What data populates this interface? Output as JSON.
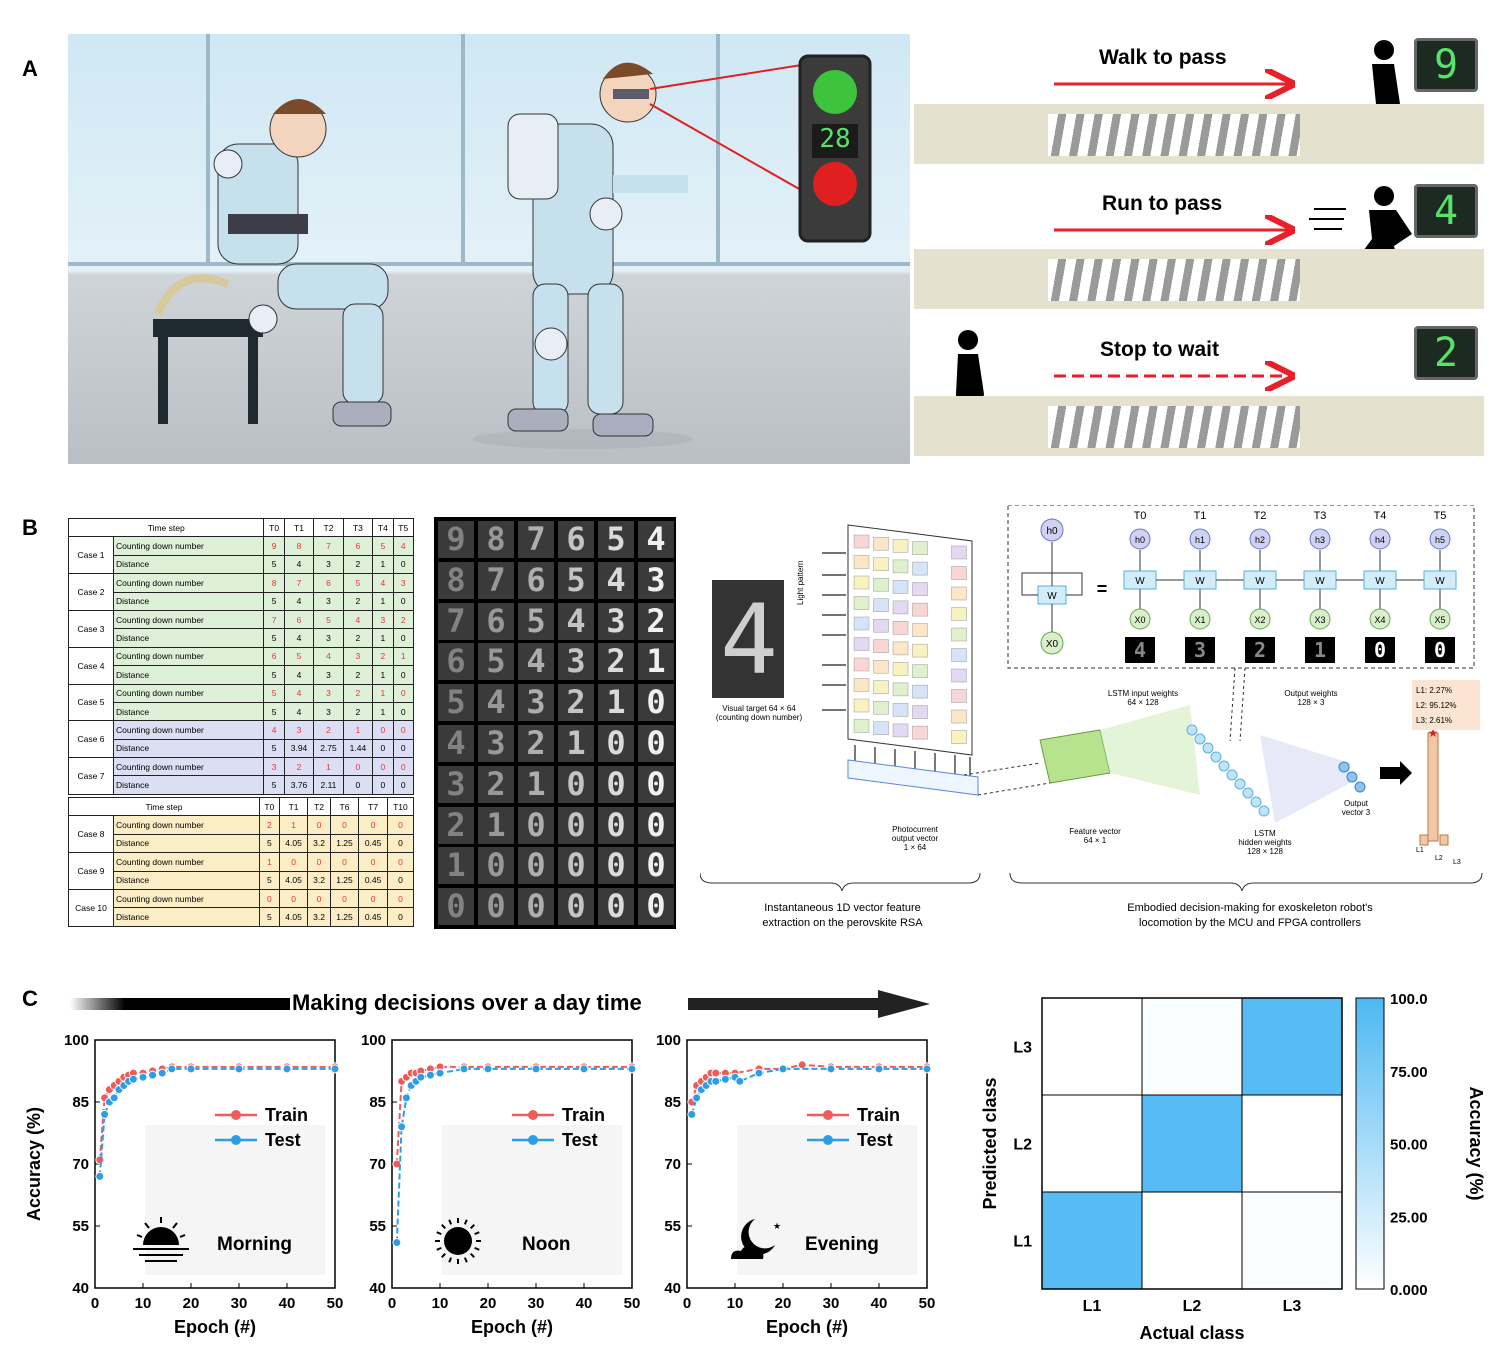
{
  "panels": {
    "a": "A",
    "b": "B",
    "c": "C"
  },
  "panel_a": {
    "traffic_light_count": "28",
    "scenarios": [
      {
        "title": "Walk to pass",
        "count": "9",
        "arrow": "solid"
      },
      {
        "title": "Run to pass",
        "count": "4",
        "arrow": "solid"
      },
      {
        "title": "Stop to wait",
        "count": "2",
        "arrow": "dashed"
      }
    ],
    "colors": {
      "arrow": "#e8202a",
      "digit": "#57e26a",
      "light_green": "#3ec43a",
      "light_red": "#e02020"
    }
  },
  "panel_b": {
    "table1": {
      "header": [
        "Time step",
        "T0",
        "T1",
        "T2",
        "T3",
        "T4",
        "T5"
      ],
      "cases": [
        {
          "name": "Case 1",
          "color": "g",
          "count": [
            "9",
            "8",
            "7",
            "6",
            "5",
            "4"
          ],
          "dist": [
            "5",
            "4",
            "3",
            "2",
            "1",
            "0"
          ]
        },
        {
          "name": "Case 2",
          "color": "g",
          "count": [
            "8",
            "7",
            "6",
            "5",
            "4",
            "3"
          ],
          "dist": [
            "5",
            "4",
            "3",
            "2",
            "1",
            "0"
          ]
        },
        {
          "name": "Case 3",
          "color": "g",
          "count": [
            "7",
            "6",
            "5",
            "4",
            "3",
            "2"
          ],
          "dist": [
            "5",
            "4",
            "3",
            "2",
            "1",
            "0"
          ]
        },
        {
          "name": "Case 4",
          "color": "g",
          "count": [
            "6",
            "5",
            "4",
            "3",
            "2",
            "1"
          ],
          "dist": [
            "5",
            "4",
            "3",
            "2",
            "1",
            "0"
          ]
        },
        {
          "name": "Case 5",
          "color": "g",
          "count": [
            "5",
            "4",
            "3",
            "2",
            "1",
            "0"
          ],
          "dist": [
            "5",
            "4",
            "3",
            "2",
            "1",
            "0"
          ]
        },
        {
          "name": "Case 6",
          "color": "b",
          "count": [
            "4",
            "3",
            "2",
            "1",
            "0",
            "0"
          ],
          "dist": [
            "5",
            "3.94",
            "2.75",
            "1.44",
            "0",
            "0"
          ]
        },
        {
          "name": "Case 7",
          "color": "b",
          "count": [
            "3",
            "2",
            "1",
            "0",
            "0",
            "0"
          ],
          "dist": [
            "5",
            "3.76",
            "2.11",
            "0",
            "0",
            "0"
          ]
        }
      ]
    },
    "table2": {
      "header": [
        "Time step",
        "T0",
        "T1",
        "T2",
        "T6",
        "T7",
        "T10"
      ],
      "cases": [
        {
          "name": "Case 8",
          "color": "y",
          "count": [
            "2",
            "1",
            "0",
            "0",
            "0",
            "0"
          ],
          "dist": [
            "5",
            "4.05",
            "3.2",
            "1.25",
            "0.45",
            "0"
          ]
        },
        {
          "name": "Case 9",
          "color": "y",
          "count": [
            "1",
            "0",
            "0",
            "0",
            "0",
            "0"
          ],
          "dist": [
            "5",
            "4.05",
            "3.2",
            "1.25",
            "0.45",
            "0"
          ]
        },
        {
          "name": "Case 10",
          "color": "y",
          "count": [
            "0",
            "0",
            "0",
            "0",
            "0",
            "0"
          ],
          "dist": [
            "5",
            "4.05",
            "3.2",
            "1.25",
            "0.45",
            "0"
          ]
        }
      ]
    },
    "row_labels": {
      "count": "Counting down number",
      "dist": "Distance"
    },
    "digit_grid": [
      [
        "9",
        "8",
        "7",
        "6",
        "5",
        "4"
      ],
      [
        "8",
        "7",
        "6",
        "5",
        "4",
        "3"
      ],
      [
        "7",
        "6",
        "5",
        "4",
        "3",
        "2"
      ],
      [
        "6",
        "5",
        "4",
        "3",
        "2",
        "1"
      ],
      [
        "5",
        "4",
        "3",
        "2",
        "1",
        "0"
      ],
      [
        "4",
        "3",
        "2",
        "1",
        "0",
        "0"
      ],
      [
        "3",
        "2",
        "1",
        "0",
        "0",
        "0"
      ],
      [
        "2",
        "1",
        "0",
        "0",
        "0",
        "0"
      ],
      [
        "1",
        "0",
        "0",
        "0",
        "0",
        "0"
      ],
      [
        "0",
        "0",
        "0",
        "0",
        "0",
        "0"
      ]
    ],
    "schematic": {
      "target_digit": "4",
      "visual_target": "Visual target 64 × 64",
      "visual_target_sub": "(counting down number)",
      "light_pattern": "Light pattern",
      "photocurrent": "Photocurrent",
      "photocurrent2": "output vector",
      "photocurrent3": "1 × 64",
      "lstm_input": "LSTM input weights",
      "lstm_input_dim": "64 × 128",
      "output_weights": "Output weights",
      "output_weights_dim": "128 × 3",
      "feature_vector": "Feature vector",
      "feature_vector_dim": "64 × 1",
      "lstm_hidden": "LSTM",
      "lstm_hidden2": "hidden weights",
      "lstm_hidden_dim": "128 × 128",
      "output_vector": "Output",
      "output_vector2": "vector 3",
      "probs": [
        "L1: 2.27%",
        "L2: 95.12%",
        "L3: 2.61%"
      ],
      "bar_labels": [
        "L1",
        "L2",
        "L3"
      ],
      "caption_left_1": "Instantaneous 1D vector feature",
      "caption_left_2": "extraction on the perovskite RSA",
      "caption_right_1": "Embodied decision-making for exoskeleton robot's",
      "caption_right_2": "locomotion by the MCU and FPGA controllers",
      "unrolled_T": [
        "T0",
        "T1",
        "T2",
        "T3",
        "T4",
        "T5"
      ],
      "unrolled_h": [
        "h0",
        "h1",
        "h2",
        "h3",
        "h4",
        "h5"
      ],
      "unrolled_x": [
        "X0",
        "X1",
        "X2",
        "X3",
        "X4",
        "X5"
      ],
      "unrolled_digits": [
        "4",
        "3",
        "2",
        "1",
        "0",
        "0"
      ],
      "cell_h": "h0",
      "cell_w": "W",
      "cell_x": "X0",
      "equals": "="
    }
  },
  "panel_c": {
    "banner": "Making decisions over a day time",
    "ylabel": "Accuracy (%)",
    "xlabel": "Epoch (#)",
    "legend": [
      "Train",
      "Test"
    ],
    "colors": {
      "train": "#ef5b5b",
      "test": "#2d9de8"
    }
  },
  "chart_data": [
    {
      "type": "line",
      "title": "Morning",
      "xlabel": "Epoch (#)",
      "ylabel": "Accuracy (%)",
      "xlim": [
        0,
        50
      ],
      "ylim": [
        40,
        100
      ],
      "x_ticks": [
        0,
        10,
        20,
        30,
        40,
        50
      ],
      "y_ticks": [
        40,
        55,
        70,
        85,
        100
      ],
      "series": [
        {
          "name": "Train",
          "x": [
            1,
            2,
            3,
            4,
            5,
            6,
            7,
            8,
            10,
            12,
            14,
            16,
            20,
            30,
            40,
            50
          ],
          "y": [
            71,
            86,
            88,
            89,
            90,
            91,
            91.5,
            92,
            92,
            92.5,
            93,
            93.5,
            93.5,
            93.5,
            93.5,
            93.5
          ]
        },
        {
          "name": "Test",
          "x": [
            1,
            2,
            3,
            4,
            5,
            6,
            7,
            8,
            10,
            12,
            14,
            16,
            20,
            30,
            40,
            50
          ],
          "y": [
            67,
            82,
            85,
            86,
            88,
            89,
            90,
            90.5,
            91,
            91.5,
            92,
            93,
            93,
            93,
            93,
            93
          ]
        }
      ]
    },
    {
      "type": "line",
      "title": "Noon",
      "xlabel": "Epoch (#)",
      "ylabel": "Accuracy (%)",
      "xlim": [
        0,
        50
      ],
      "ylim": [
        40,
        100
      ],
      "x_ticks": [
        0,
        10,
        20,
        30,
        40,
        50
      ],
      "y_ticks": [
        40,
        55,
        70,
        85,
        100
      ],
      "series": [
        {
          "name": "Train",
          "x": [
            1,
            2,
            3,
            4,
            5,
            6,
            8,
            10,
            15,
            20,
            30,
            40,
            50
          ],
          "y": [
            70,
            90,
            91,
            92,
            92,
            92.5,
            93,
            93.5,
            93.5,
            93.5,
            93.5,
            93.5,
            93.5
          ]
        },
        {
          "name": "Test",
          "x": [
            1,
            2,
            3,
            4,
            5,
            6,
            8,
            10,
            15,
            20,
            30,
            40,
            50
          ],
          "y": [
            51,
            79,
            86,
            89,
            90,
            91,
            91.5,
            92,
            93,
            93,
            93,
            93,
            93
          ]
        }
      ]
    },
    {
      "type": "line",
      "title": "Evening",
      "xlabel": "Epoch (#)",
      "ylabel": "Accuracy (%)",
      "xlim": [
        0,
        50
      ],
      "ylim": [
        40,
        100
      ],
      "x_ticks": [
        0,
        10,
        20,
        30,
        40,
        50
      ],
      "y_ticks": [
        40,
        55,
        70,
        85,
        100
      ],
      "series": [
        {
          "name": "Train",
          "x": [
            1,
            2,
            3,
            4,
            5,
            6,
            8,
            10,
            15,
            20,
            24,
            30,
            40,
            50
          ],
          "y": [
            85,
            89,
            90,
            91,
            92,
            92,
            92,
            92,
            93,
            93,
            94,
            93.5,
            93.5,
            93.5
          ]
        },
        {
          "name": "Test",
          "x": [
            1,
            2,
            3,
            4,
            5,
            6,
            8,
            10,
            11,
            15,
            20,
            30,
            40,
            50
          ],
          "y": [
            82,
            86,
            88,
            89,
            90,
            90,
            90.5,
            91,
            90,
            92,
            93,
            93,
            93,
            93
          ]
        }
      ]
    },
    {
      "type": "heatmap",
      "xlabel": "Actual class",
      "ylabel": "Predicted class",
      "x_categories": [
        "L1",
        "L2",
        "L3"
      ],
      "y_categories": [
        "L3",
        "L2",
        "L1"
      ],
      "values": [
        [
          0,
          3,
          95
        ],
        [
          0,
          95,
          0
        ],
        [
          95,
          0,
          3
        ]
      ],
      "colorbar_label": "Accuracy (%)",
      "colorbar_ticks": [
        "100.0",
        "75.00",
        "50.00",
        "25.00",
        "0.000"
      ],
      "colorbar_range": [
        0,
        100
      ],
      "colormap": [
        "#ffffff",
        "#4db8f2"
      ]
    }
  ]
}
